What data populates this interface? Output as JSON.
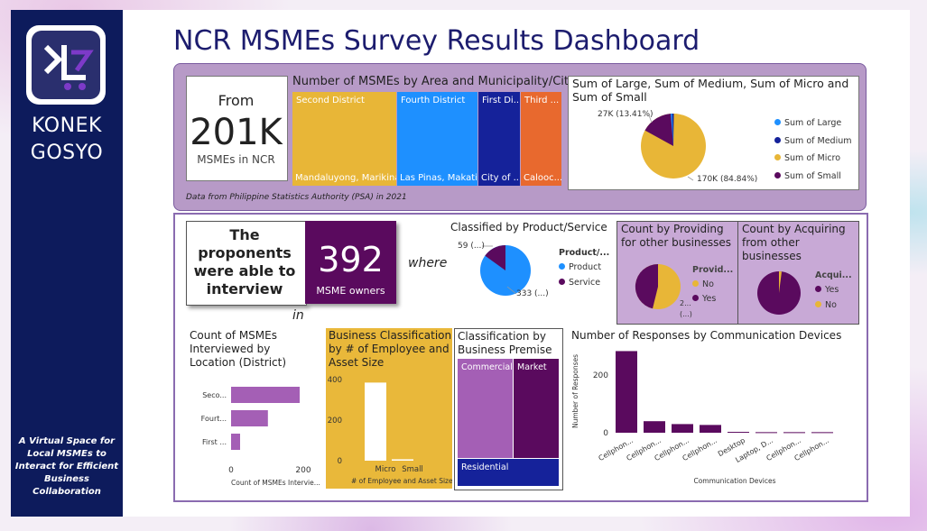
{
  "sidebar": {
    "brand_line1": "KONEK",
    "brand_line2": "GOSYO",
    "tagline": "A Virtual Space for Local MSMEs to Interact for Efficient Business Collaboration",
    "colors": {
      "background": "#0d1b5c",
      "logo_purple": "#6a2fb0"
    }
  },
  "dashboard": {
    "title": "NCR MSMEs Survey Results Dashboard"
  },
  "kpi_total": {
    "label": "From",
    "value": "201K",
    "unit": "MSMEs in NCR"
  },
  "area_treemap": {
    "title": "Number of MSMEs by Area and Municipality/City",
    "cells": [
      {
        "top": "Second District",
        "bottom": "Mandaluyong, Marikina,...",
        "color": "#e8b637"
      },
      {
        "top": "Fourth District",
        "bottom": "Las Pinas, Makati, ...",
        "color": "#1e90ff"
      },
      {
        "top": "First Di...",
        "bottom": "City of ...",
        "color": "#15229a"
      },
      {
        "top": "Third ...",
        "bottom": "Calooc...",
        "color": "#e8692e"
      }
    ],
    "source": "Data from Philippine Statistics Authority (PSA) in 2021"
  },
  "size_pie": {
    "title": "Sum of Large, Sum of Medium, Sum of Micro and Sum of Small",
    "label_small": "27K (13.41%)",
    "label_micro": "170K (84.84%)",
    "legend": [
      {
        "name": "Sum of Large",
        "color": "#1e90ff"
      },
      {
        "name": "Sum of Medium",
        "color": "#15229a"
      },
      {
        "name": "Sum of Micro",
        "color": "#e8b637"
      },
      {
        "name": "Sum of Small",
        "color": "#5a0a5e"
      }
    ]
  },
  "interview": {
    "intro": "The proponents were able to interview",
    "count": "392",
    "unit": "MSME owners",
    "where": "where",
    "in": "in"
  },
  "product_service": {
    "title": "Classified by Product/Service",
    "legend_title": "Product/...",
    "label_service": "59 (...)",
    "label_product": "333 (...)",
    "legend": [
      {
        "name": "Product",
        "color": "#1e90ff"
      },
      {
        "name": "Service",
        "color": "#5a0a5e"
      }
    ]
  },
  "providing": {
    "title": "Count by Providing for other businesses",
    "legend_title": "Provid...",
    "slice_label_top": "2...",
    "slice_label_bottom": "(...)",
    "legend": [
      {
        "name": "No",
        "color": "#e8b637"
      },
      {
        "name": "Yes",
        "color": "#5a0a5e"
      }
    ]
  },
  "acquiring": {
    "title": "Count by Acquiring from other businesses",
    "legend_title": "Acqui...",
    "legend": [
      {
        "name": "Yes",
        "color": "#5a0a5e"
      },
      {
        "name": "No",
        "color": "#e8b637"
      }
    ]
  },
  "premise": {
    "title": "Classification by Business Premise",
    "cells": [
      {
        "label": "Commercial",
        "color": "#a45fb5"
      },
      {
        "label": "Market",
        "color": "#5a0a5e"
      },
      {
        "label": "Residential",
        "color": "#15229a"
      }
    ]
  },
  "chart_data": [
    {
      "type": "bar",
      "orientation": "horizontal",
      "title": "Count of MSMEs Interviewed by Location (District)",
      "categories": [
        "Seco...",
        "Fourt...",
        "First ..."
      ],
      "values": [
        190,
        102,
        25
      ],
      "xlabel": "Count of MSMEs Intervie...",
      "xticks": [
        "0",
        "200"
      ],
      "xlim": [
        0,
        250
      ],
      "color": "#a45fb5"
    },
    {
      "type": "bar",
      "title": "Business Classification by # of Employee and Asset Size",
      "categories": [
        "Micro",
        "Small"
      ],
      "values": [
        385,
        7
      ],
      "xlabel": "# of Employee and Asset Size",
      "yticks": [
        "400",
        "200",
        "0"
      ],
      "ylim": [
        0,
        400
      ],
      "color": "#ffffff"
    },
    {
      "type": "bar",
      "title": "Number of Responses by Communication Devices",
      "categories": [
        "Cellphon...",
        "Cellphon...",
        "Cellphon...",
        "Cellphon...",
        "Desktop",
        "Laptop, D...",
        "Cellphon...",
        "Cellphon..."
      ],
      "values": [
        283,
        40,
        30,
        27,
        3,
        2,
        2,
        2
      ],
      "xlabel": "Communication Devices",
      "ylabel": "Number of Responses",
      "yticks": [
        "200",
        "0"
      ],
      "ylim": [
        0,
        300
      ],
      "color": "#5a0a5e"
    }
  ]
}
